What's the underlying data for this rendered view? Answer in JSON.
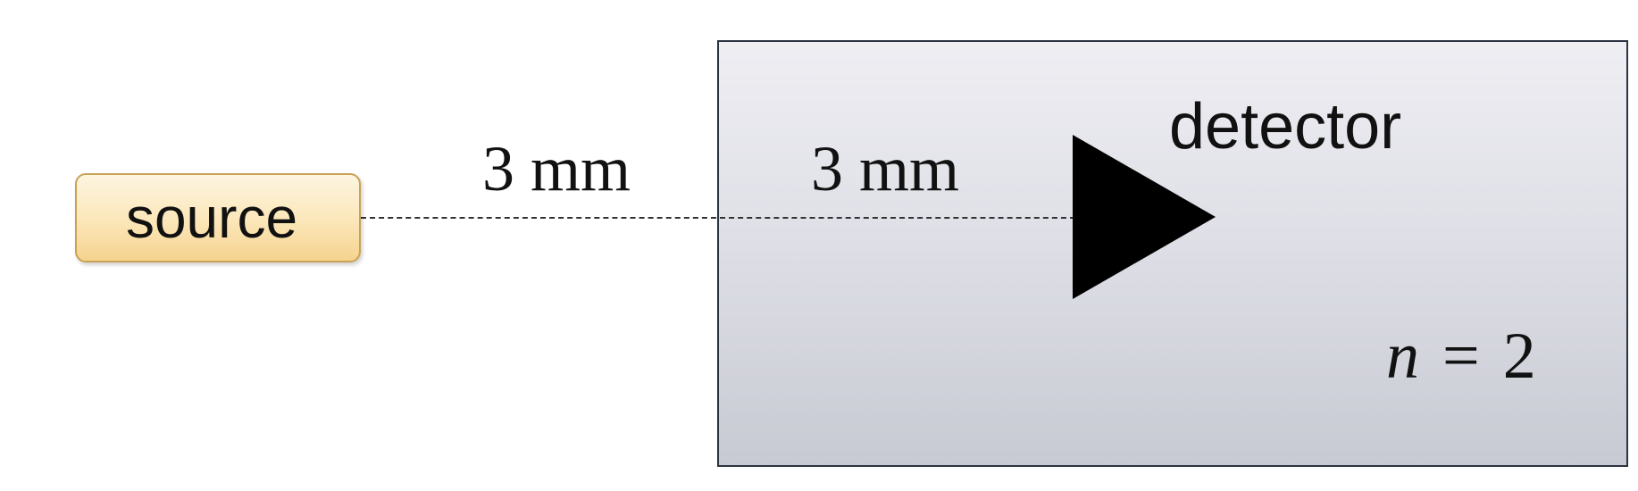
{
  "source": {
    "label": "source"
  },
  "detector": {
    "label": "detector"
  },
  "distances": {
    "source_to_boundary": "3 mm",
    "boundary_to_detector": "3 mm"
  },
  "medium": {
    "index_symbol": "n",
    "index_operator": "=",
    "index_value": "2"
  },
  "colors": {
    "source_fill": "#fbe6b8",
    "source_border": "#c9a255",
    "medium_fill": "#dfe0e7",
    "medium_border": "#2b3340",
    "detector_marker": "#000000"
  }
}
